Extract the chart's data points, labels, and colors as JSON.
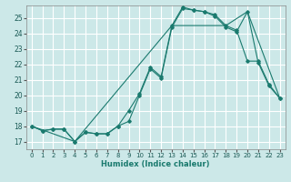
{
  "title": "",
  "xlabel": "Humidex (Indice chaleur)",
  "bg_color": "#cce8e8",
  "grid_color": "#ffffff",
  "line_color": "#1a7a6e",
  "xlim": [
    -0.5,
    23.5
  ],
  "ylim": [
    16.5,
    25.8
  ],
  "yticks": [
    17,
    18,
    19,
    20,
    21,
    22,
    23,
    24,
    25
  ],
  "xticks": [
    0,
    1,
    2,
    3,
    4,
    5,
    6,
    7,
    8,
    9,
    10,
    11,
    12,
    13,
    14,
    15,
    16,
    17,
    18,
    19,
    20,
    21,
    22,
    23
  ],
  "line1_x": [
    0,
    1,
    2,
    3,
    4,
    5,
    6,
    7,
    8,
    9,
    10,
    11,
    12,
    13,
    14,
    15,
    16,
    17,
    18,
    19,
    20,
    21,
    22,
    23
  ],
  "line1_y": [
    18.0,
    17.7,
    17.8,
    17.8,
    17.0,
    17.6,
    17.5,
    17.5,
    18.0,
    18.3,
    20.0,
    21.7,
    21.1,
    24.4,
    25.6,
    25.5,
    25.4,
    25.1,
    24.4,
    24.1,
    25.4,
    22.1,
    20.6,
    19.8
  ],
  "line2_x": [
    0,
    1,
    2,
    3,
    4,
    5,
    6,
    7,
    8,
    9,
    10,
    11,
    12,
    13,
    14,
    15,
    16,
    17,
    18,
    19,
    20,
    21,
    22,
    23
  ],
  "line2_y": [
    18.0,
    17.7,
    17.8,
    17.8,
    17.0,
    17.6,
    17.5,
    17.5,
    18.0,
    19.0,
    20.1,
    21.8,
    21.2,
    24.5,
    25.7,
    25.5,
    25.4,
    25.2,
    24.5,
    24.2,
    22.2,
    22.2,
    20.7,
    19.8
  ],
  "line3_x": [
    0,
    4,
    13,
    18,
    20,
    23
  ],
  "line3_y": [
    18.0,
    17.0,
    24.5,
    24.5,
    25.4,
    19.8
  ]
}
